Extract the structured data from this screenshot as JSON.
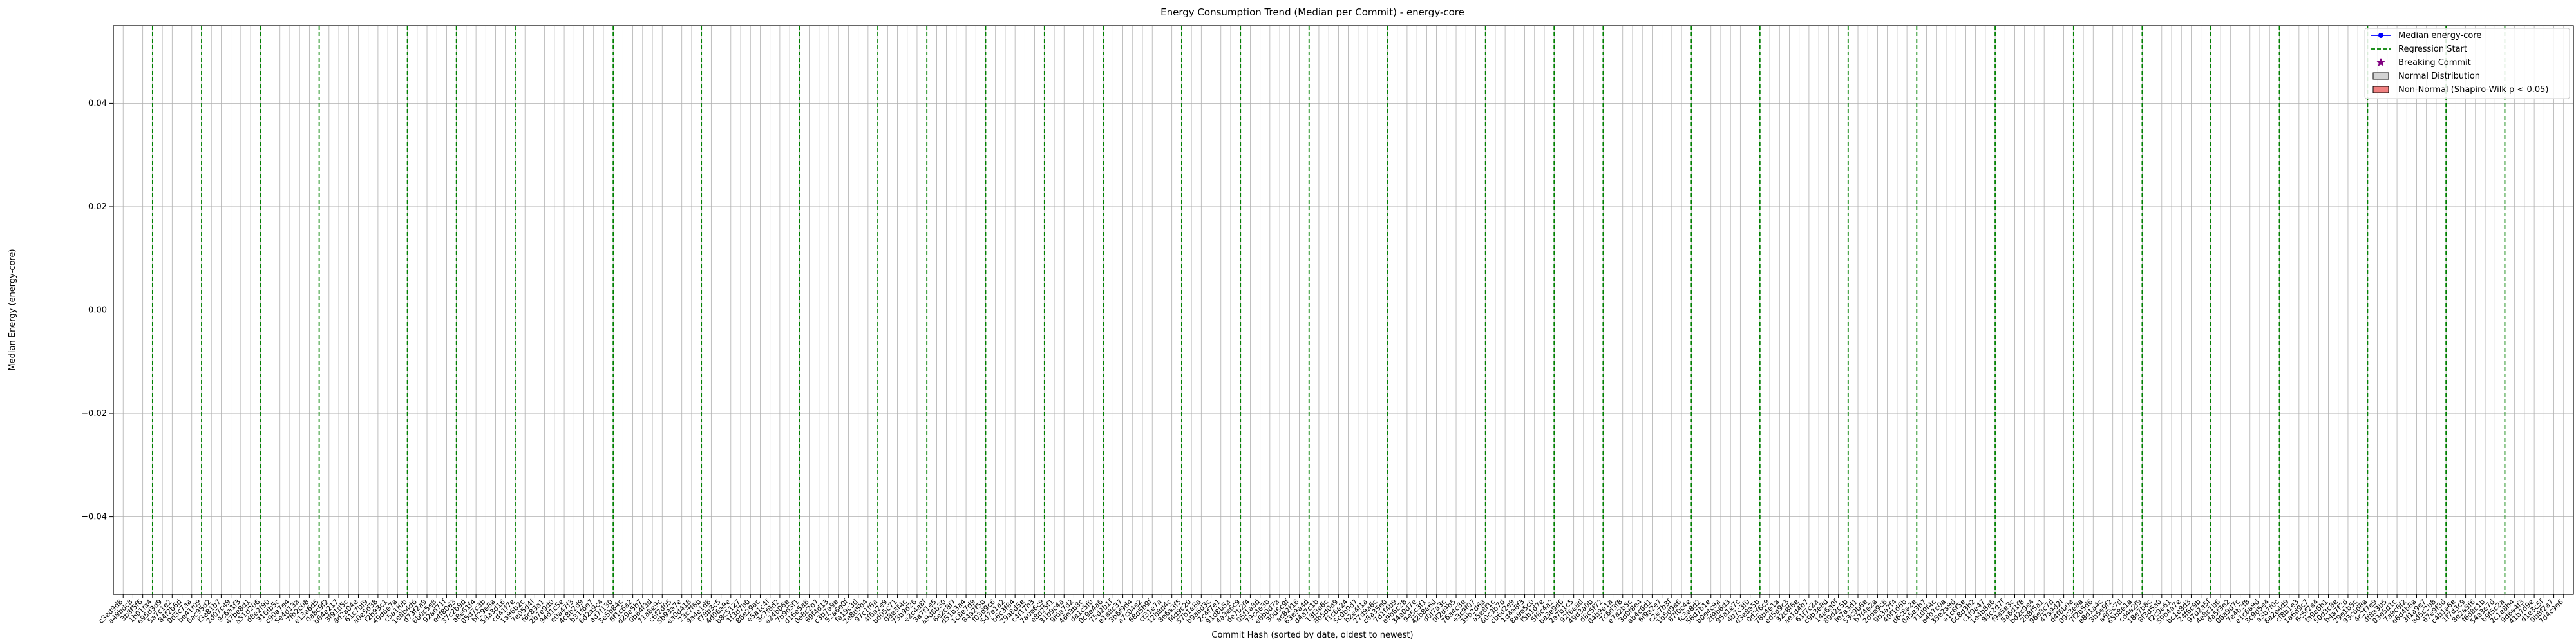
{
  "chart_data": {
    "type": "line",
    "title": "Energy Consumption Trend (Median per Commit) - energy-core",
    "xlabel": "Commit Hash (sorted by date, oldest to newest)",
    "ylabel": "Median Energy (energy-core)",
    "ylim": [
      -0.055,
      0.055
    ],
    "yticks": [
      0.04,
      0.02,
      0.0,
      -0.02,
      -0.04
    ],
    "ytick_labels": [
      "0.04",
      "0.02",
      "0.00",
      "−0.02",
      "−0.04"
    ],
    "grid": true,
    "legend_position": "top-right",
    "legend": [
      {
        "label": "Median energy-core",
        "kind": "line-marker",
        "color": "#0000ff"
      },
      {
        "label": "Regression Start",
        "kind": "dashed-line",
        "color": "#008000"
      },
      {
        "label": "Breaking Commit",
        "kind": "star",
        "color": "#800080"
      },
      {
        "label": "Normal Distribution",
        "kind": "patch",
        "color": "#d3d3d3"
      },
      {
        "label": "Non-Normal (Shapiro-Wilk p < 0.05)",
        "kind": "patch",
        "color": "#f08080"
      }
    ],
    "commits": [
      "c3ed9d8",
      "a49bdc8",
      "3b8f5f6",
      "1b01fa4",
      "e95d3d9",
      "5a7c1e2",
      "84f2b6d",
      "0d3c7aa",
      "be41f09",
      "6ac95d2",
      "f3e81b7",
      "2d07c49",
      "9c6a1f3",
      "47be8d1",
      "a51d206",
      "d8e2f90",
      "316fb5c",
      "c90a7e4",
      "5e4d13a",
      "7fb2c08",
      "e13a6d5",
      "0a8c9f2",
      "b64e217",
      "3f91d5c",
      "8d2a04e",
      "61c7bf9",
      "a0e5d38",
      "f2b93c1",
      "49d6e7a",
      "c5a1f0b",
      "1e8b4d6",
      "d73f2a9",
      "6b0c5e8",
      "92ad71f",
      "e4f8063",
      "37c2b9d",
      "a8e61f4",
      "05d7c3b",
      "bf29e8a",
      "58a3d16",
      "cd41f7e",
      "1a96b2c",
      "7e05d4f",
      "f6c83a1",
      "2b7e9d0",
      "94d1c5e",
      "e0a47f3",
      "4c8b2d9",
      "b31f6e7",
      "6d2a9c4",
      "ad7f130",
      "3e5b84c",
      "8f1c6a2",
      "d29e5b7",
      "0b64f3d",
      "71a8e9c",
      "c6f2d05",
      "5b93a7e",
      "ea0d418",
      "23c7f6b",
      "9a4e1d8",
      "f78b3c5",
      "4d06a9e",
      "b8c5127",
      "1f3d7b0",
      "86e29ac",
      "e5a1c4f",
      "3c7f8d2",
      "a24b06e",
      "7b9d3f1",
      "d16e5a8",
      "0e8c2b7",
      "69f4d13",
      "c3b7a9e",
      "52a6e0f",
      "fa19c3d",
      "2e8d5b4",
      "97c1f6a",
      "4f6a2e9",
      "bd05c71",
      "08e3f4c",
      "73b9d26",
      "e2c4a8f",
      "3a7f1e5",
      "a9d6b30",
      "6e2c8f7",
      "d51b3a4",
      "1c8e7d9",
      "84a2f5b",
      "f03d9c6",
      "5d7e1a2",
      "b6c3f84",
      "29a8d5e",
      "c4f17b3",
      "7a0e6c9",
      "e8d25f1",
      "31b9c4a",
      "9f6a7d2",
      "46e3b8c",
      "da1c5f0",
      "0c9e4a6",
      "75d2b1f",
      "e1a8c37",
      "3b6f9d4",
      "a7c04e2",
      "68d5b9f",
      "cf31e7a",
      "12b8d4c",
      "8e6a3f5",
      "f4d9c20",
      "57b1e8a",
      "b9a6d3c",
      "2c4f7e1",
      "91d8b5a",
      "4a3e6c9",
      "de7b2f4",
      "05f1a8d",
      "79c4e3b",
      "e6b0d7a",
      "30d5c9f",
      "ac82f16",
      "63e9a4d",
      "d4a7c1b",
      "18f3e6c",
      "8b5d0a9",
      "f1c6e24",
      "5c0b9d7",
      "b2e4f1a",
      "27d9a6c",
      "c8a35e0",
      "7d1f4b9",
      "e9b6c28",
      "34a0d7e",
      "9e5c3f1",
      "42b8e6d",
      "d0f7a3c",
      "0f2d9b5",
      "76a4c8e",
      "e3c9f07",
      "39b2d6a",
      "a5e8f1c",
      "60c3b7d",
      "cb6d2e9",
      "1d4a8f3",
      "8a9e5c0",
      "f5b1d7e",
      "5f8c4a2",
      "ba3e9d6",
      "2a7b1c5",
      "92f6e8d",
      "49d3a0b",
      "d8c5f72",
      "04b9e1a",
      "7c6d3f8",
      "e7a2b5c",
      "3d0f8e4",
      "ab4c6d1",
      "6f9a2e7",
      "c2e7b3f",
      "1b5d9a6",
      "87f0c4e",
      "fc3a8d2",
      "56d7b1e",
      "b0e4c9a",
      "2f9b6d3",
      "95a1e7c",
      "4b7c3f0",
      "d3e8a5b",
      "0d2f6c9",
      "78b4e1a",
      "ed5a9c3",
      "32c8f6e",
      "ae1d4b7",
      "61f7c2a",
      "c9b3e8d",
      "14e6a0f",
      "89d2c5b",
      "fe7a3d1",
      "53c9b6e",
      "b7f4e2a",
      "2d6e9c8",
      "9b3a7f4",
      "40f1d6b",
      "d6c8a2e",
      "0a5e3b7",
      "71d9f4c",
      "e4b7c0a",
      "35e2a9d",
      "a1c6f5e",
      "6c8d3b2",
      "c1f9e47",
      "1e4b8a6",
      "88c2d7f",
      "f9a5e3c",
      "5a6d1f8",
      "bd2c9e4",
      "2b8f5a1",
      "96e3c7d",
      "47a9d2f",
      "d4f6b0e",
      "09c3e8a",
      "7f2b5d6",
      "e8d1a4c",
      "3b5e9f2",
      "a6f3c7d",
      "65b8e1a",
      "cd4a2f9",
      "18e7b6c",
      "8f3d5a0",
      "f2c9e61",
      "59b4a7e",
      "bc1e8d3",
      "24f6c9b",
      "97d2a5f",
      "4e8c1b6",
      "da5f3e2",
      "06a9d7c",
      "7e4b2f8",
      "e1c6a9d",
      "3c9d5e4",
      "a3b7f0c",
      "6a2e4d9",
      "cf8b1e3",
      "1a6d9c7",
      "8c5f2a4",
      "fa9e6b1",
      "50d3c8e",
      "b4a7f2d",
      "29e1b5c",
      "93c6d8a",
      "4c2f7e9",
      "df8a3b5",
      "03e5d1c",
      "7a9c6f2",
      "e6d4b8a",
      "3f1a9e7",
      "ad5c2b8",
      "67e9f3d",
      "c4b1a6e",
      "1f7d3c9",
      "8e2a5f6",
      "f6d8c1b",
      "54a3e7d",
      "b9f5c2a",
      "2c1e8b4",
      "9d6a4f3",
      "41b7d9e",
      "d1e3c5f",
      "0b8f2a7",
      "7d4c9e6"
    ],
    "median_energy": "none (no data points plotted)",
    "regression_start_commits": [
      "1b01fa4",
      "be41f09",
      "a51d206",
      "e13a6d5",
      "c5a1f0b",
      "e4f8063",
      "cd41f7e",
      "ad7f130",
      "23c7f6b",
      "7b9d3f1",
      "97c1f6a",
      "e2c4a8f",
      "84a2f5b",
      "7a0e6c9",
      "0c9e4a6",
      "8e6a3f5",
      "4a3e6c9",
      "63e9a4d",
      "c8a35e0",
      "39b2d6a",
      "5f8c4a2",
      "d8c5f72",
      "87f0c4e",
      "d3e8a5b",
      "89d2c5b",
      "d6c8a2e",
      "1e4b8a6",
      "d4f6b0e",
      "cd4a2f9",
      "97d2a5f",
      "a3b7f0c",
      "93c6d8a",
      "67e9f3d",
      "b9f5c2a"
    ]
  }
}
